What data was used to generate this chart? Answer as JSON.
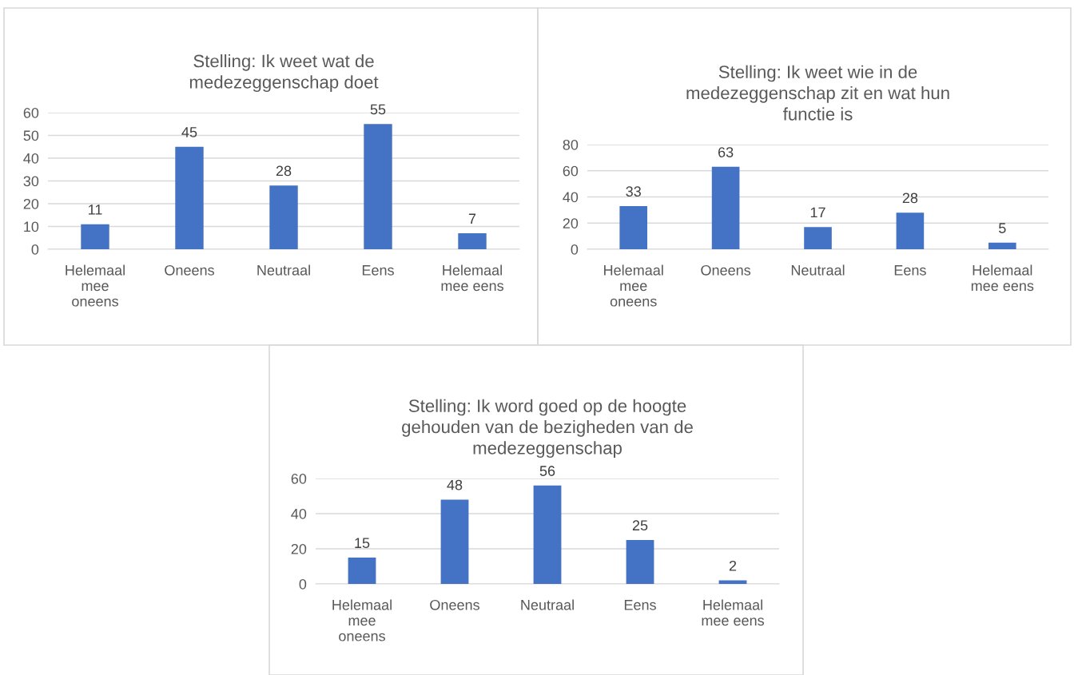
{
  "chart_data": [
    {
      "type": "bar",
      "title": "Stelling: Ik weet wat de\nmedezeggenschap doet",
      "categories": [
        "Helemaal\nmee\noneens",
        "Oneens",
        "Neutraal",
        "Eens",
        "Helemaal\nmee eens"
      ],
      "values": [
        11,
        45,
        28,
        55,
        7
      ],
      "color": "#4472c4",
      "ylim": [
        0,
        60
      ],
      "yticks": [
        0,
        10,
        20,
        30,
        40,
        50,
        60
      ],
      "grid": "y",
      "data_labels": true
    },
    {
      "type": "bar",
      "title": "Stelling: Ik weet wie in de\nmedezeggenschap zit en wat hun\nfunctie is",
      "categories": [
        "Helemaal\nmee\noneens",
        "Oneens",
        "Neutraal",
        "Eens",
        "Helemaal\nmee eens"
      ],
      "values": [
        33,
        63,
        17,
        28,
        5
      ],
      "color": "#4472c4",
      "ylim": [
        0,
        80
      ],
      "yticks": [
        0,
        20,
        40,
        60,
        80
      ],
      "grid": "y",
      "data_labels": true
    },
    {
      "type": "bar",
      "title": "Stelling: Ik word goed op de hoogte\ngehouden van de bezigheden van de\nmedezeggenschap",
      "categories": [
        "Helemaal\nmee\noneens",
        "Oneens",
        "Neutraal",
        "Eens",
        "Helemaal\nmee eens"
      ],
      "values": [
        15,
        48,
        56,
        25,
        2
      ],
      "color": "#4472c4",
      "ylim": [
        0,
        60
      ],
      "yticks": [
        0,
        20,
        40,
        60
      ],
      "grid": "y",
      "data_labels": true
    }
  ]
}
